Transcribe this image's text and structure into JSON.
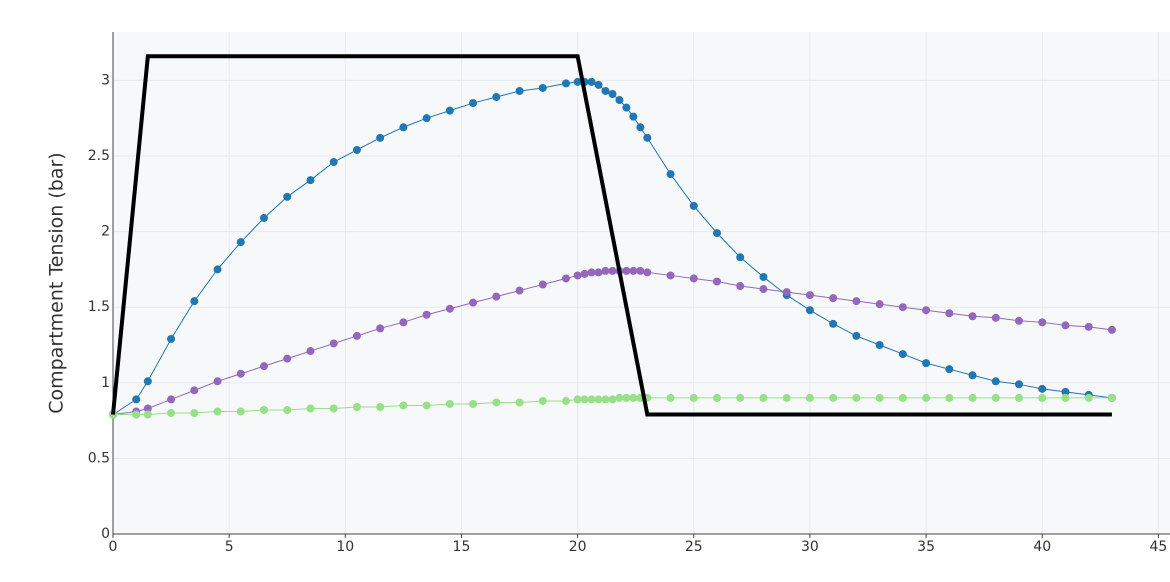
{
  "chart_data": {
    "type": "line",
    "y_label": "Compartment Tension (bar)",
    "x": [
      0,
      1,
      1.5,
      2.5,
      3.5,
      4.5,
      5.5,
      6.5,
      7.5,
      8.5,
      9.5,
      10.5,
      11.5,
      12.5,
      13.5,
      14.5,
      15.5,
      16.5,
      17.5,
      18.5,
      19.5,
      20,
      20.3,
      20.6,
      20.9,
      21.2,
      21.5,
      21.8,
      22.1,
      22.4,
      22.7,
      23,
      24,
      25,
      26,
      27,
      28,
      29,
      30,
      31,
      32,
      33,
      34,
      35,
      36,
      37,
      38,
      39,
      40,
      41,
      42,
      43
    ],
    "series": [
      {
        "color": "#000000",
        "markers": false,
        "width": 4,
        "x": [
          0,
          1.5,
          20,
          23,
          43
        ],
        "values": [
          0.79,
          3.16,
          3.16,
          0.79,
          0.79
        ]
      },
      {
        "color": "#1f77b4",
        "markers": true,
        "width": 1,
        "values": [
          0.79,
          0.89,
          1.01,
          1.29,
          1.54,
          1.75,
          1.93,
          2.09,
          2.23,
          2.34,
          2.46,
          2.54,
          2.62,
          2.69,
          2.75,
          2.8,
          2.85,
          2.89,
          2.93,
          2.95,
          2.98,
          2.99,
          2.99,
          2.99,
          2.97,
          2.93,
          2.91,
          2.87,
          2.82,
          2.76,
          2.69,
          2.62,
          2.38,
          2.17,
          1.99,
          1.83,
          1.7,
          1.58,
          1.48,
          1.39,
          1.31,
          1.25,
          1.19,
          1.13,
          1.09,
          1.05,
          1.01,
          0.99,
          0.96,
          0.94,
          0.92,
          0.9
        ]
      },
      {
        "color": "#9467bd",
        "markers": true,
        "width": 1,
        "values": [
          0.79,
          0.81,
          0.83,
          0.89,
          0.95,
          1.01,
          1.06,
          1.11,
          1.16,
          1.21,
          1.26,
          1.31,
          1.36,
          1.4,
          1.45,
          1.49,
          1.53,
          1.57,
          1.61,
          1.65,
          1.69,
          1.71,
          1.72,
          1.73,
          1.73,
          1.74,
          1.74,
          1.74,
          1.74,
          1.74,
          1.74,
          1.73,
          1.71,
          1.69,
          1.67,
          1.64,
          1.62,
          1.6,
          1.58,
          1.56,
          1.54,
          1.52,
          1.5,
          1.48,
          1.46,
          1.44,
          1.43,
          1.41,
          1.4,
          1.38,
          1.37,
          1.35
        ]
      },
      {
        "color": "#98df8a",
        "markers": true,
        "width": 1,
        "values": [
          0.79,
          0.79,
          0.79,
          0.8,
          0.8,
          0.81,
          0.81,
          0.82,
          0.82,
          0.83,
          0.83,
          0.84,
          0.84,
          0.85,
          0.85,
          0.86,
          0.86,
          0.87,
          0.87,
          0.88,
          0.88,
          0.89,
          0.89,
          0.89,
          0.89,
          0.89,
          0.89,
          0.9,
          0.9,
          0.9,
          0.9,
          0.9,
          0.9,
          0.9,
          0.9,
          0.9,
          0.9,
          0.9,
          0.9,
          0.9,
          0.9,
          0.9,
          0.9,
          0.9,
          0.9,
          0.9,
          0.9,
          0.9,
          0.9,
          0.9,
          0.9,
          0.9
        ]
      }
    ],
    "xlim": [
      0,
      45.5
    ],
    "xticks": [
      0,
      5,
      10,
      15,
      20,
      25,
      30,
      35,
      40,
      45
    ],
    "ylim": [
      0,
      3.32
    ],
    "yticks": [
      0,
      0.5,
      1,
      1.5,
      2,
      2.5,
      3
    ],
    "grid": true
  }
}
